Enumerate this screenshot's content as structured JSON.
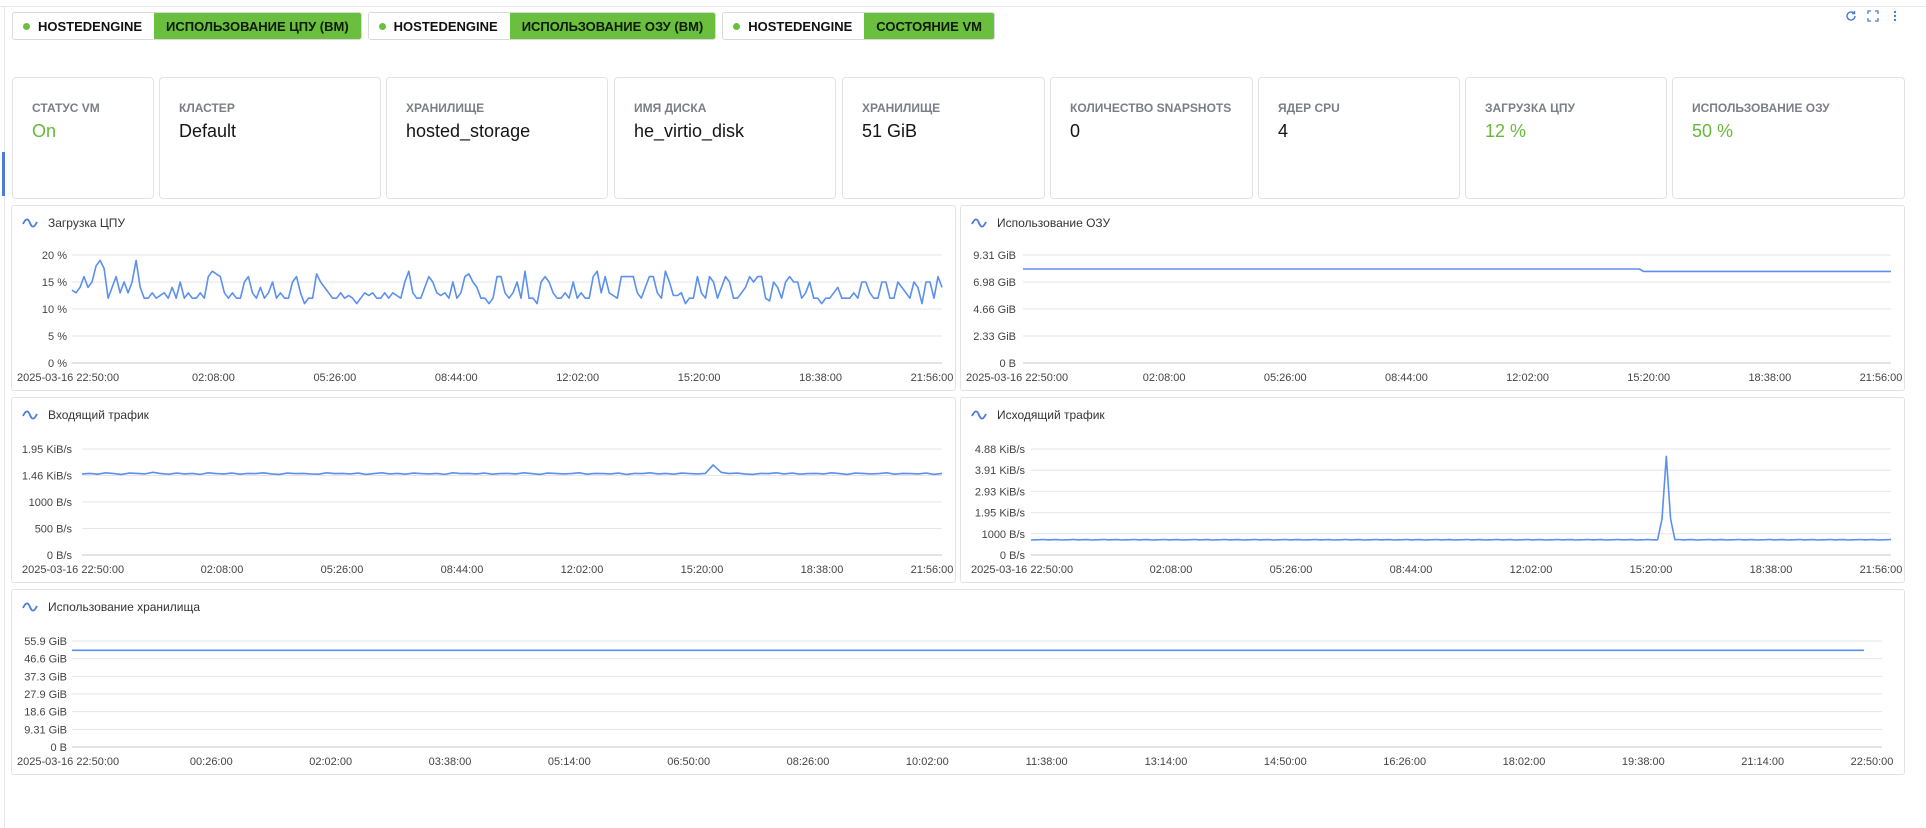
{
  "tags": [
    {
      "host": "HOSTEDENGINE",
      "metric": "ИСПОЛЬЗОВАНИЕ ЦПУ (ВМ)"
    },
    {
      "host": "HOSTEDENGINE",
      "metric": "ИСПОЛЬЗОВАНИЕ ОЗУ (ВМ)"
    },
    {
      "host": "HOSTEDENGINE",
      "metric": "СОСТОЯНИЕ VM"
    }
  ],
  "toolbar_icons": [
    "refresh-icon",
    "fullscreen-icon",
    "more-vertical-icon"
  ],
  "cards": [
    {
      "label": "Статус VM",
      "value": "On",
      "green": true
    },
    {
      "label": "Кластер",
      "value": "Default",
      "green": false
    },
    {
      "label": "Хранилище",
      "value": "hosted_storage",
      "green": false
    },
    {
      "label": "Имя диска",
      "value": "he_virtio_disk",
      "green": false
    },
    {
      "label": "Хранилище",
      "value": "51 GiB",
      "green": false
    },
    {
      "label": "Количество snapshots",
      "value": "0",
      "green": false
    },
    {
      "label": "Ядер CPU",
      "value": "4",
      "green": false
    },
    {
      "label": "Загрузка ЦПУ",
      "value": "12 %",
      "green": true
    },
    {
      "label": "Использование ОЗУ",
      "value": "50 %",
      "green": true
    }
  ],
  "colors": {
    "accent": "#4a7bd8",
    "status_green": "#6abf3e",
    "line": "#5b8ff0",
    "grid": "#e6e6e6"
  },
  "chart_data": [
    {
      "id": "cpu",
      "type": "line",
      "title": "Загрузка ЦПУ",
      "y_unit": "%",
      "y_ticks": [
        "0 %",
        "5 %",
        "10 %",
        "15 %",
        "20 %"
      ],
      "ylim": [
        0,
        20
      ],
      "x_ticks": [
        "2025-03-16 22:50:00",
        "02:08:00",
        "05:26:00",
        "08:44:00",
        "12:02:00",
        "15:20:00",
        "18:38:00",
        "21:56:00"
      ],
      "grid": true,
      "values": [
        13.5,
        13,
        14,
        16,
        14,
        15,
        18,
        19,
        17.5,
        12,
        14,
        16,
        13,
        15,
        13,
        15,
        19,
        14,
        12,
        12,
        13,
        12,
        12.5,
        13,
        12,
        14,
        12,
        15,
        12,
        13,
        12,
        12,
        13,
        12,
        16,
        17,
        16.5,
        16,
        13,
        12,
        13,
        12,
        12,
        15,
        16,
        13,
        12,
        14,
        12,
        13,
        15,
        12,
        13,
        12,
        12,
        15,
        16,
        13,
        11,
        12,
        12,
        16.5,
        15,
        14,
        13,
        12,
        12,
        13,
        12,
        12.5,
        12,
        11,
        12,
        13,
        12.5,
        13,
        12,
        12,
        13,
        12,
        13,
        12.5,
        12,
        15,
        17,
        13,
        12,
        12,
        14,
        16,
        15,
        13,
        12.5,
        13,
        12,
        15,
        12,
        13,
        16,
        16.5,
        15,
        14,
        12,
        12,
        11,
        12,
        16,
        16,
        13,
        12,
        13,
        15,
        12,
        17,
        12,
        12,
        11,
        15,
        16,
        15,
        13,
        12,
        12,
        13,
        12,
        15,
        12,
        13,
        12,
        12,
        16,
        17,
        13,
        16,
        13,
        12.5,
        12,
        16,
        16,
        16,
        16,
        13,
        12,
        14,
        16,
        16,
        13,
        12,
        17,
        15,
        12.5,
        12.5,
        13,
        11,
        12,
        12,
        16,
        13,
        12,
        16,
        15,
        12,
        14,
        16,
        15,
        12,
        12,
        13,
        14,
        16,
        15,
        16,
        16,
        12,
        11.5,
        15,
        14,
        12,
        15,
        16,
        15,
        15,
        12,
        13,
        15,
        12,
        12,
        11,
        12,
        12,
        13,
        14,
        12,
        12,
        12,
        13,
        12,
        15,
        15,
        13,
        12,
        12,
        15,
        15,
        12,
        12,
        15,
        14,
        13,
        12,
        15,
        14,
        11,
        15,
        15,
        12,
        16,
        14
      ],
      "x_start": "2025-03-16 22:50:00",
      "x_end": "2025-03-17 23:30:00"
    },
    {
      "id": "ram",
      "type": "line",
      "title": "Использование ОЗУ",
      "y_ticks": [
        "0  B",
        "2.33  GiB",
        "4.66  GiB",
        "6.98  GiB",
        "9.31  GiB"
      ],
      "ylim": [
        0,
        9.31
      ],
      "x_ticks": [
        "2025-03-16 22:50:00",
        "02:08:00",
        "05:26:00",
        "08:44:00",
        "12:02:00",
        "15:20:00",
        "18:38:00",
        "21:56:00"
      ],
      "grid": true,
      "points": [
        [
          0,
          8.1
        ],
        [
          0.71,
          8.1
        ],
        [
          0.715,
          7.9
        ],
        [
          1,
          7.9
        ]
      ]
    },
    {
      "id": "net_in",
      "type": "line",
      "title": "Входящий трафик",
      "y_ticks": [
        "0  B/s",
        "500  B/s",
        "1000  B/s",
        "1.46  KiB/s",
        "1.95  KiB/s"
      ],
      "ylim": [
        0,
        2000
      ],
      "x_ticks": [
        "2025-03-16 22:50:00",
        "02:08:00",
        "05:26:00",
        "08:44:00",
        "12:02:00",
        "15:20:00",
        "18:38:00",
        "21:56:00"
      ],
      "grid": true,
      "values": [
        1530,
        1540,
        1525,
        1550,
        1535,
        1520,
        1545,
        1540,
        1530,
        1560,
        1535,
        1525,
        1545,
        1530,
        1540,
        1520,
        1550,
        1535,
        1530,
        1545,
        1525,
        1540,
        1535,
        1550,
        1530,
        1520,
        1545,
        1535,
        1540,
        1530,
        1525,
        1550,
        1535,
        1540,
        1530,
        1545,
        1520,
        1535,
        1550,
        1530,
        1540,
        1525,
        1545,
        1535,
        1530,
        1540,
        1520,
        1550,
        1535,
        1540,
        1530,
        1545,
        1525,
        1535,
        1540,
        1530,
        1550,
        1535,
        1520,
        1545,
        1540,
        1530,
        1535,
        1550,
        1525,
        1540,
        1535,
        1530,
        1545,
        1520,
        1540,
        1535,
        1550,
        1530,
        1540,
        1525,
        1545,
        1535,
        1530,
        1540,
        1700,
        1560,
        1535,
        1545,
        1530,
        1520,
        1540,
        1535,
        1550,
        1530,
        1545,
        1525,
        1535,
        1540,
        1530,
        1550,
        1535,
        1520,
        1545,
        1540,
        1530,
        1535,
        1550,
        1525,
        1540,
        1535,
        1530,
        1545,
        1520,
        1540
      ]
    },
    {
      "id": "net_out",
      "type": "line",
      "title": "Исходящий трафик",
      "y_ticks": [
        "0  B/s",
        "1000  B/s",
        "1.95  KiB/s",
        "2.93  KiB/s",
        "3.91  KiB/s",
        "4.88  KiB/s"
      ],
      "ylim": [
        0,
        5000
      ],
      "x_ticks": [
        "2025-03-16 22:50:00",
        "02:08:00",
        "05:26:00",
        "08:44:00",
        "12:02:00",
        "15:20:00",
        "18:38:00",
        "21:56:00"
      ],
      "grid": true,
      "baseline": 720,
      "spike": {
        "at": 0.739,
        "value": 4650
      }
    },
    {
      "id": "storage",
      "type": "line",
      "title": "Использование хранилища",
      "y_ticks": [
        "0  B",
        "9.31  GiB",
        "18.6  GiB",
        "27.9  GiB",
        "37.3  GiB",
        "46.6  GiB",
        "55.9  GiB"
      ],
      "ylim": [
        0,
        55.9
      ],
      "x_ticks": [
        "2025-03-16 22:50:00",
        "00:26:00",
        "02:02:00",
        "03:38:00",
        "05:14:00",
        "06:50:00",
        "08:26:00",
        "10:02:00",
        "11:38:00",
        "13:14:00",
        "14:50:00",
        "16:26:00",
        "18:02:00",
        "19:38:00",
        "21:14:00",
        "22:50:00"
      ],
      "grid": true,
      "points": [
        [
          0,
          51
        ],
        [
          0.99,
          51
        ]
      ]
    }
  ]
}
